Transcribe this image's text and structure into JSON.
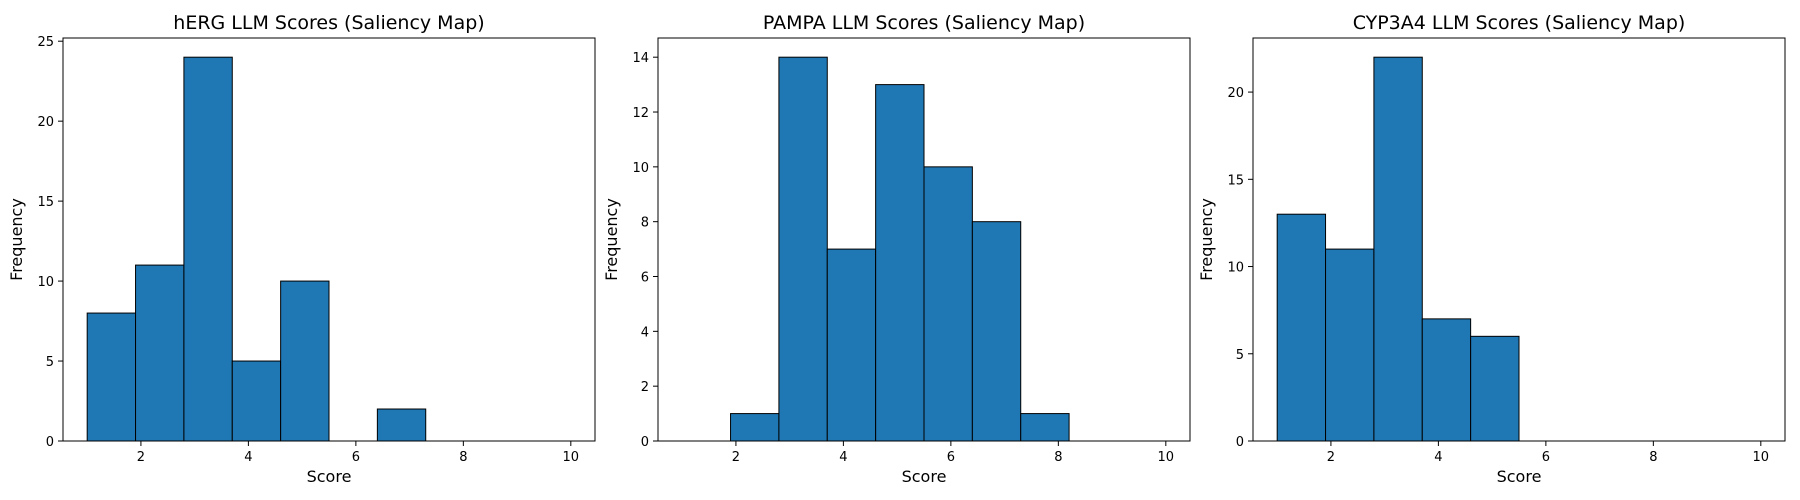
{
  "chart_data": [
    {
      "type": "bar",
      "title": "hERG LLM Scores (Saliency Map)",
      "xlabel": "Score",
      "ylabel": "Frequency",
      "xlim": [
        0.55,
        10.45
      ],
      "ylim": [
        0,
        25.2
      ],
      "xticks": [
        2,
        4,
        6,
        8,
        10
      ],
      "yticks": [
        0,
        5,
        10,
        15,
        20,
        25
      ],
      "bin_edges": [
        1.0,
        1.9,
        2.8,
        3.7,
        4.6,
        5.5,
        6.4,
        7.3,
        8.2,
        9.1,
        10.0
      ],
      "values": [
        8,
        11,
        24,
        5,
        10,
        0,
        2,
        0,
        0,
        0
      ],
      "bar_color": "#1f77b4",
      "grid": false
    },
    {
      "type": "bar",
      "title": "PAMPA LLM Scores (Saliency Map)",
      "xlabel": "Score",
      "ylabel": "Frequency",
      "xlim": [
        0.55,
        10.45
      ],
      "ylim": [
        0,
        14.7
      ],
      "xticks": [
        2,
        4,
        6,
        8,
        10
      ],
      "yticks": [
        0,
        2,
        4,
        6,
        8,
        10,
        12,
        14
      ],
      "bin_edges": [
        1.0,
        1.9,
        2.8,
        3.7,
        4.6,
        5.5,
        6.4,
        7.3,
        8.2,
        9.1,
        10.0
      ],
      "values": [
        0,
        1,
        14,
        7,
        13,
        10,
        8,
        1,
        0,
        0
      ],
      "bar_color": "#1f77b4",
      "grid": false
    },
    {
      "type": "bar",
      "title": "CYP3A4 LLM Scores (Saliency Map)",
      "xlabel": "Score",
      "ylabel": "Frequency",
      "xlim": [
        0.55,
        10.45
      ],
      "ylim": [
        0,
        23.1
      ],
      "xticks": [
        2,
        4,
        6,
        8,
        10
      ],
      "yticks": [
        0,
        5,
        10,
        15,
        20
      ],
      "bin_edges": [
        1.0,
        1.9,
        2.8,
        3.7,
        4.6,
        5.5,
        6.4,
        7.3,
        8.2,
        9.1,
        10.0
      ],
      "values": [
        13,
        11,
        22,
        7,
        6,
        0,
        0,
        0,
        0,
        0
      ],
      "bar_color": "#1f77b4",
      "grid": false
    }
  ]
}
